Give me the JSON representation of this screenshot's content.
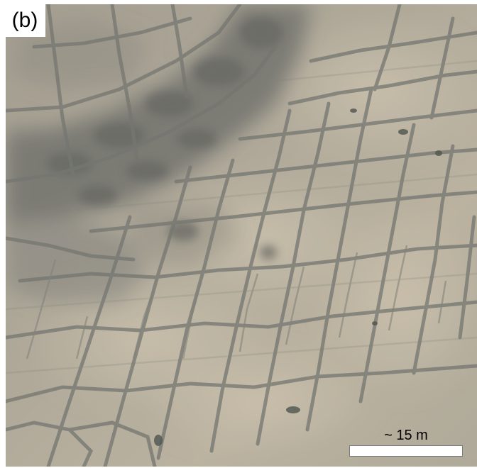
{
  "figure": {
    "panel_label": "(b)",
    "scale_label": "~ 15 m"
  },
  "photo": {
    "subject": "aerial-polygonal-terrain",
    "colors": {
      "ground_light": "#bdb4a2",
      "ground_mid": "#a8a292",
      "dark_wet_band": "#6f716d",
      "trough_lines": "#676b67"
    }
  }
}
